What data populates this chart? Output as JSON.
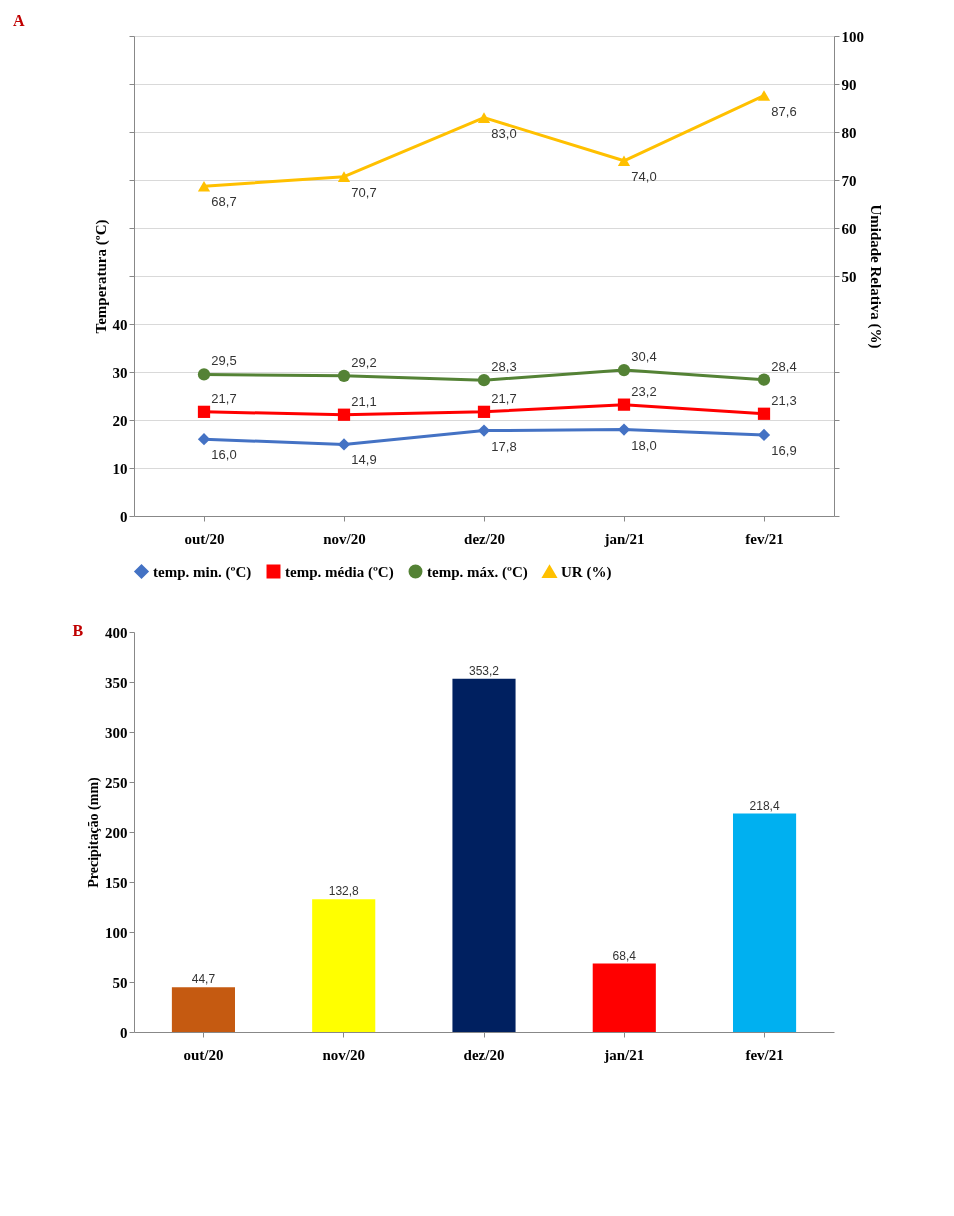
{
  "chart_data": [
    {
      "type": "line",
      "title": "A",
      "categories": [
        "out/20",
        "nov/20",
        "dez/20",
        "jan/21",
        "fev/21"
      ],
      "series": [
        {
          "name": "temp. min. (ºC)",
          "color": "#4472c4",
          "marker": "diamond",
          "values": [
            16.0,
            14.9,
            17.8,
            18.0,
            16.9
          ],
          "value_labels": [
            "16,0",
            "14,9",
            "17,8",
            "18,0",
            "16,9"
          ]
        },
        {
          "name": "temp. média (ºC)",
          "color": "#ff0000",
          "marker": "square",
          "values": [
            21.7,
            21.1,
            21.7,
            23.2,
            21.3
          ],
          "value_labels": [
            "21,7",
            "21,1",
            "21,7",
            "23,2",
            "21,3"
          ]
        },
        {
          "name": "temp. máx. (ºC)",
          "color": "#548235",
          "marker": "circle",
          "values": [
            29.5,
            29.2,
            28.3,
            30.4,
            28.4
          ],
          "value_labels": [
            "29,5",
            "29,2",
            "28,3",
            "30,4",
            "28,4"
          ]
        },
        {
          "name": "UR (%)",
          "color": "#ffc000",
          "marker": "triangle",
          "axis": "y2",
          "values": [
            68.7,
            70.7,
            83.0,
            74.0,
            87.6
          ],
          "value_labels": [
            "68,7",
            "70,7",
            "83,0",
            "74,0",
            "87,6"
          ]
        }
      ],
      "ylabel": "Temperatura (ºC)",
      "y2label": "Umidade Relativa (%)",
      "ylim": [
        0,
        100
      ],
      "yticks": [
        0,
        10,
        20,
        30,
        40,
        {
          "value": 50,
          "label": null
        },
        {
          "value": 60,
          "label": null
        },
        {
          "value": 70,
          "label": null
        },
        {
          "value": 80,
          "label": null
        },
        {
          "value": 90,
          "label": null
        },
        {
          "value": 100,
          "label": null
        }
      ],
      "y2lim": [
        0,
        100
      ],
      "y2ticks": [
        {
          "value": 0,
          "label": null
        },
        {
          "value": 10,
          "label": null
        },
        {
          "value": 20,
          "label": null
        },
        {
          "value": 30,
          "label": null
        },
        {
          "value": 40,
          "label": null
        },
        50,
        60,
        70,
        80,
        90,
        100
      ],
      "grid": "y",
      "legend": "bottom"
    },
    {
      "type": "bar",
      "title": "B",
      "categories": [
        "out/20",
        "nov/20",
        "dez/20",
        "jan/21",
        "fev/21"
      ],
      "values": [
        44.7,
        132.8,
        353.2,
        68.4,
        218.4
      ],
      "value_labels": [
        "44,7",
        "132,8",
        "353,2",
        "68,4",
        "218,4"
      ],
      "colors": [
        "#c55a11",
        "#ffff00",
        "#002060",
        "#ff0000",
        "#00b0f0"
      ],
      "ylabel": "Precipitação (mm)",
      "ylim": [
        0,
        400
      ],
      "yticks": [
        0,
        50,
        100,
        150,
        200,
        250,
        300,
        350,
        400
      ]
    }
  ]
}
